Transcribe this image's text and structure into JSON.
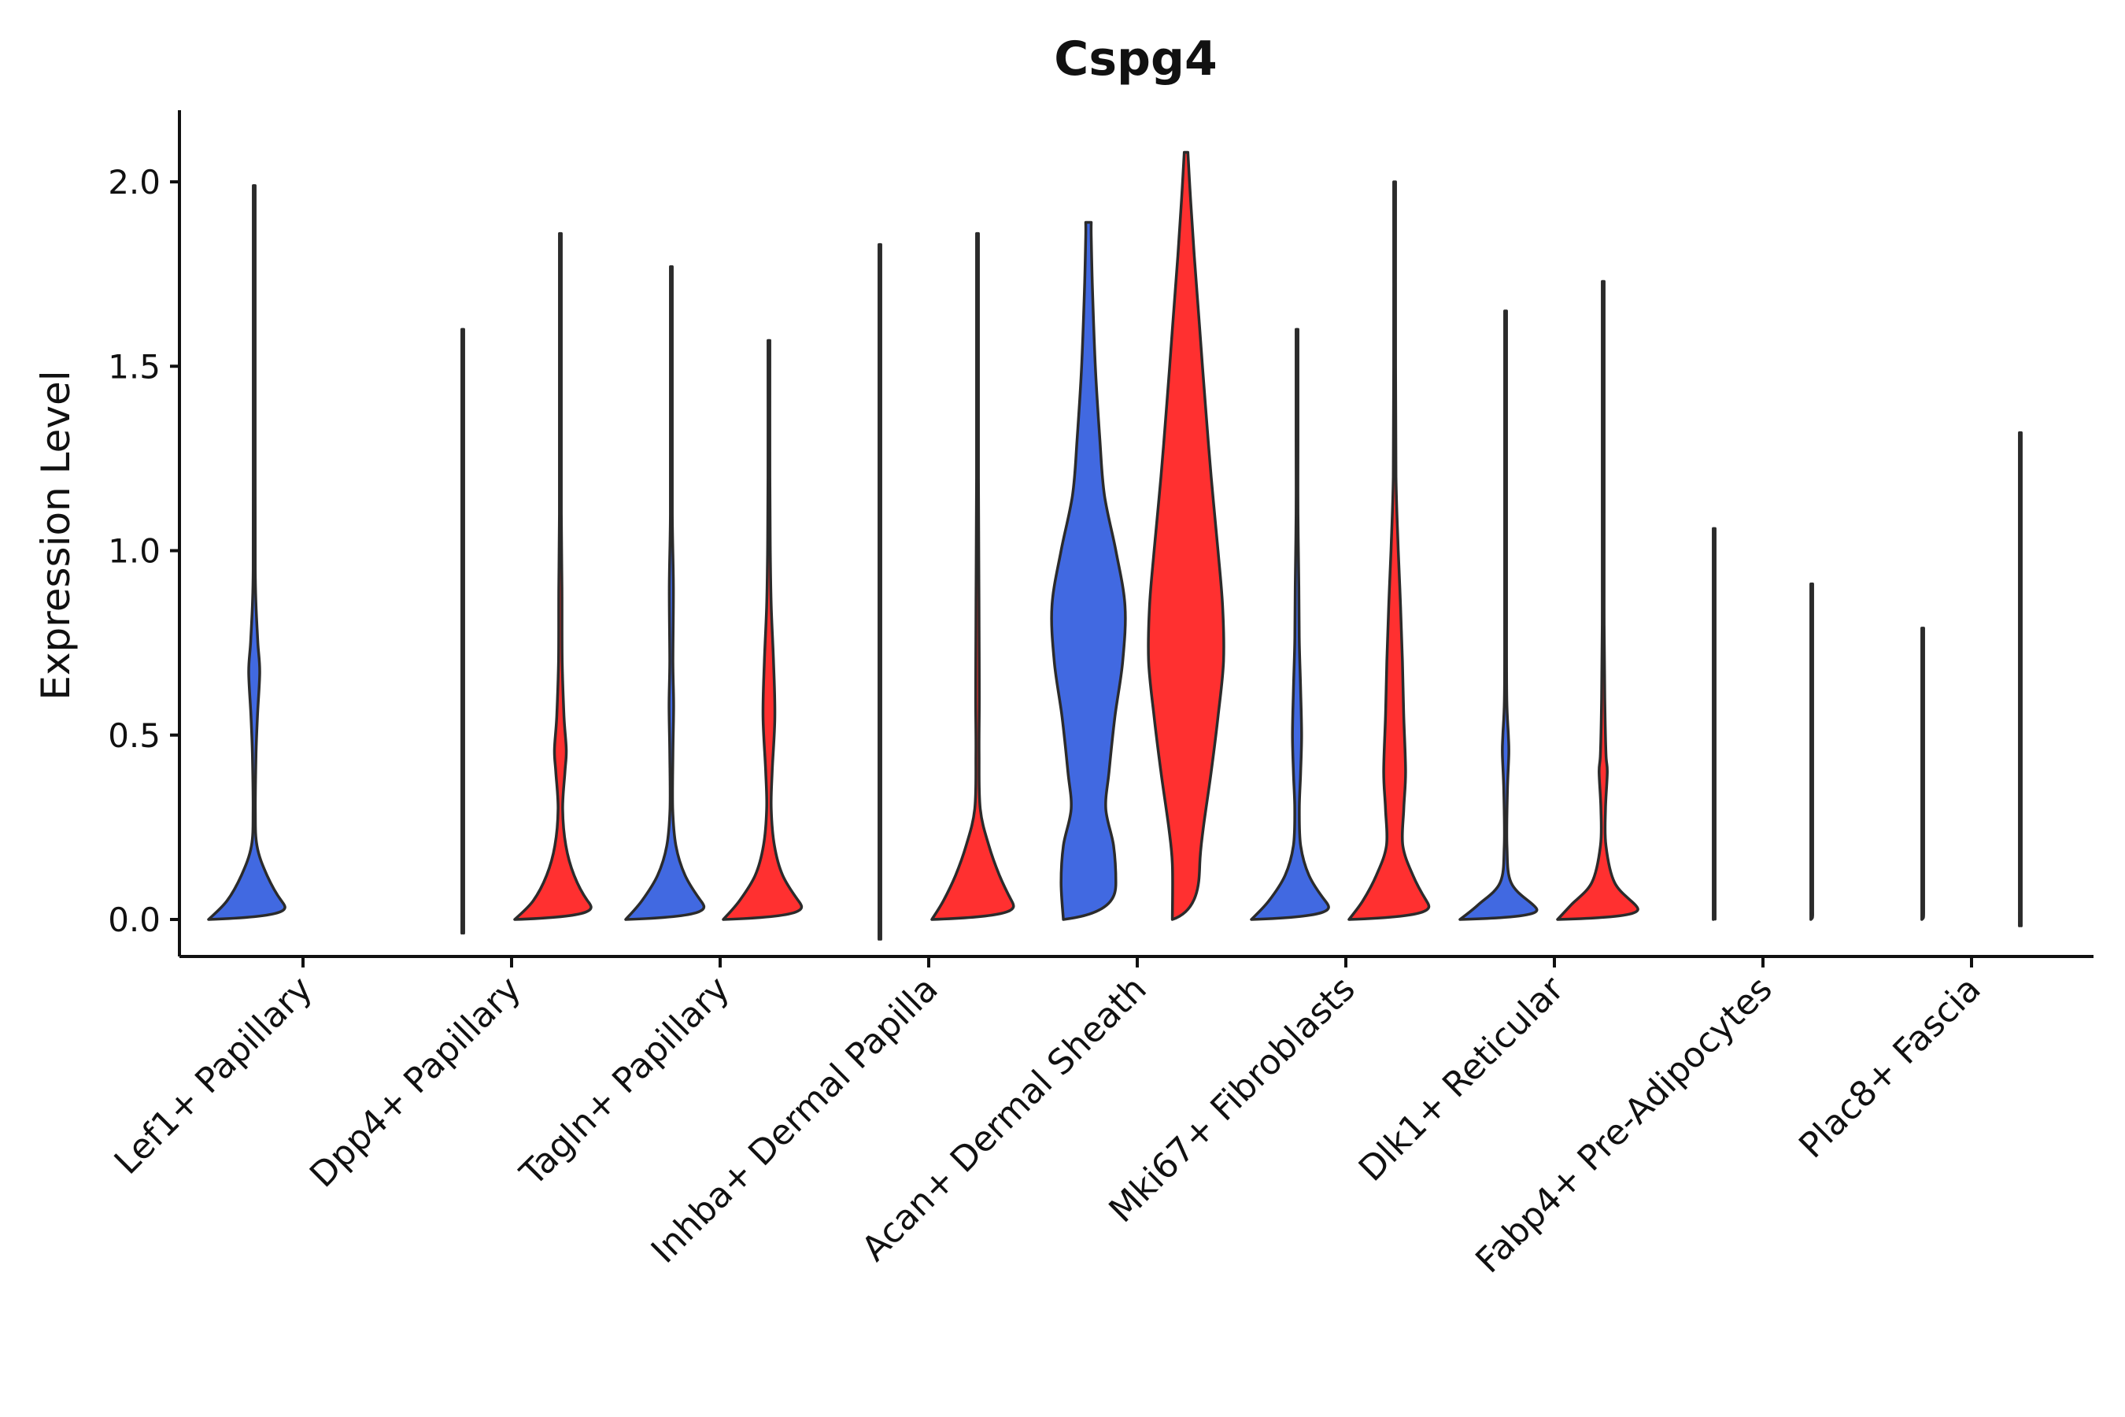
{
  "chart_data": {
    "type": "violin",
    "title": "Cspg4",
    "xlabel": "",
    "ylabel": "Expression Level",
    "ylim": [
      -0.1,
      2.2
    ],
    "yticks": [
      0.0,
      0.5,
      1.0,
      1.5,
      2.0
    ],
    "ytick_labels": [
      "0.0",
      "0.5",
      "1.0",
      "1.5",
      "2.0"
    ],
    "grid": false,
    "legend": "none",
    "colors": {
      "group1": "#4169E1",
      "group2": "#FF3030"
    },
    "categories": [
      "Lef1+ Papillary",
      "Dpp4+ Papillary",
      "Tagln+ Papillary",
      "Inhba+ Dermal Papilla",
      "Acan+ Dermal Sheath",
      "Mki67+ Fibroblasts",
      "Dlk1+ Reticular",
      "Fabp4+ Pre-Adipocytes",
      "Plac8+ Fascia"
    ],
    "series": [
      {
        "name": "group1",
        "violins": [
          {
            "category": "Lef1+ Papillary",
            "max": 1.99,
            "density": [
              [
                0,
                1.0
              ],
              [
                0.05,
                0.6
              ],
              [
                0.12,
                0.28
              ],
              [
                0.2,
                0.06
              ],
              [
                0.3,
                0.025
              ],
              [
                0.45,
                0.04
              ],
              [
                0.55,
                0.07
              ],
              [
                0.67,
                0.12
              ],
              [
                0.75,
                0.08
              ],
              [
                0.85,
                0.04
              ],
              [
                0.95,
                0.022
              ],
              [
                1.2,
                0.012
              ],
              [
                1.6,
                0.006
              ],
              [
                1.99,
                0.003
              ]
            ]
          },
          {
            "category": "Dpp4+ Papillary",
            "max": 1.6,
            "density": [
              [
                0,
                0.02
              ],
              [
                0.02,
                0.008
              ],
              [
                0.1,
                0.005
              ],
              [
                1.6,
                0.004
              ]
            ]
          },
          {
            "category": "Tagln+ Papillary",
            "max": 1.77,
            "density": [
              [
                0,
                1.0
              ],
              [
                0.05,
                0.65
              ],
              [
                0.12,
                0.3
              ],
              [
                0.2,
                0.1
              ],
              [
                0.3,
                0.03
              ],
              [
                0.45,
                0.035
              ],
              [
                0.58,
                0.05
              ],
              [
                0.7,
                0.035
              ],
              [
                0.9,
                0.045
              ],
              [
                1.1,
                0.02
              ],
              [
                1.4,
                0.01
              ],
              [
                1.77,
                0.004
              ]
            ]
          },
          {
            "category": "Inhba+ Dermal Papilla",
            "max": 1.83,
            "density": [
              [
                0,
                0.02
              ],
              [
                0.02,
                0.008
              ],
              [
                0.1,
                0.005
              ],
              [
                1.83,
                0.004
              ]
            ]
          },
          {
            "category": "Acan+ Dermal Sheath",
            "max": 1.89,
            "density": [
              [
                0,
                0.55
              ],
              [
                0.1,
                0.6
              ],
              [
                0.2,
                0.55
              ],
              [
                0.3,
                0.38
              ],
              [
                0.4,
                0.45
              ],
              [
                0.55,
                0.58
              ],
              [
                0.7,
                0.75
              ],
              [
                0.85,
                0.8
              ],
              [
                1.0,
                0.6
              ],
              [
                1.15,
                0.35
              ],
              [
                1.3,
                0.25
              ],
              [
                1.5,
                0.15
              ],
              [
                1.7,
                0.09
              ],
              [
                1.85,
                0.06
              ],
              [
                1.89,
                0.06
              ]
            ]
          }
        ]
      },
      {
        "name": "group2",
        "violins": [
          {
            "category": "Dpp4+ Papillary",
            "max": 1.86,
            "density": [
              [
                0,
                1.0
              ],
              [
                0.05,
                0.6
              ],
              [
                0.12,
                0.3
              ],
              [
                0.2,
                0.12
              ],
              [
                0.3,
                0.05
              ],
              [
                0.4,
                0.1
              ],
              [
                0.46,
                0.13
              ],
              [
                0.55,
                0.08
              ],
              [
                0.7,
                0.04
              ],
              [
                0.9,
                0.035
              ],
              [
                1.1,
                0.02
              ],
              [
                1.4,
                0.01
              ],
              [
                1.86,
                0.004
              ]
            ]
          }
        ]
      }
    ]
  }
}
